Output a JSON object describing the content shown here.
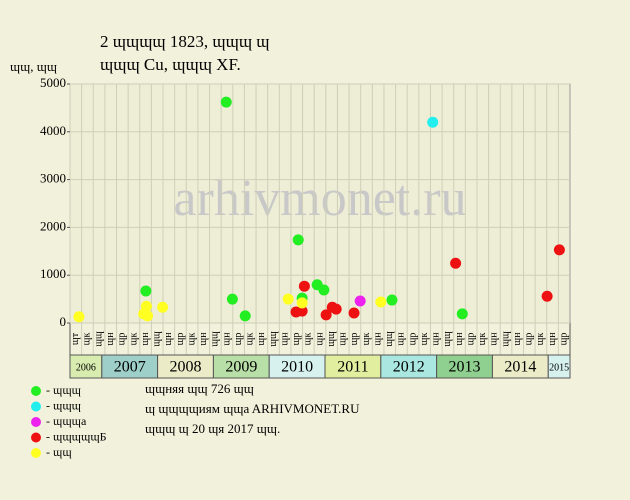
{
  "chart_data": {
    "type": "scatter",
    "title": "2 ɰɰɰɰ 1823, ɰɰɰ ɰ",
    "subtitle": "ɰɰɰ Cu, ɰɰɰ XF.",
    "y_label": "ɰɰ, ɰɰ",
    "watermark": "arhivmonet.ru",
    "ylim": [
      0,
      5000
    ],
    "yticks": [
      0,
      1000,
      2000,
      3000,
      4000,
      5000
    ],
    "xlim": [
      2006.43,
      2015.39
    ],
    "grid": true,
    "period_labels": [
      "ɰт",
      "ɰк",
      "ɰɰ",
      "ɰн",
      "ɰр",
      "ɰк",
      "ɰн",
      "ɰɰ",
      "ɰн",
      "ɰр",
      "ɰк",
      "ɰн",
      "ɰɰ",
      "ɰн",
      "ɰр",
      "ɰк",
      "ɰн",
      "ɰɰ",
      "ɰн",
      "ɰр",
      "ɰк",
      "ɰн",
      "ɰɰ",
      "ɰн",
      "ɰр",
      "ɰк",
      "ɰн",
      "ɰɰ",
      "ɰн",
      "ɰр",
      "ɰк",
      "ɰн",
      "ɰɰ",
      "ɰн",
      "ɰр",
      "ɰк",
      "ɰн",
      "ɰɰ",
      "ɰн",
      "ɰр",
      "ɰк",
      "ɰн",
      "ɰр"
    ],
    "years": [
      2006,
      2007,
      2008,
      2009,
      2010,
      2011,
      2012,
      2013,
      2014,
      2015
    ],
    "year_colors": [
      "#d8ecb0",
      "#9ecfc8",
      "#ecebc8",
      "#b9dfa8",
      "#d6f1ee",
      "#e1eea0",
      "#a9e7e0",
      "#8fcf90",
      "#ecebc8",
      "#d6f1ee"
    ],
    "series": [
      {
        "name": "- ɰɰɰ",
        "color": "#22ee22",
        "x": [
          2007.79,
          2009.23,
          2009.34,
          2009.57,
          2010.52,
          2010.59,
          2010.86,
          2010.98,
          2012.2,
          2013.46
        ],
        "values": [
          670,
          4620,
          500,
          150,
          1740,
          520,
          800,
          690,
          480,
          190
        ]
      },
      {
        "name": "- ɰɰɰ",
        "color": "#22eeee",
        "x": [
          2012.93
        ],
        "values": [
          4200
        ]
      },
      {
        "name": "- ɰɰɰa",
        "color": "#ee22ee",
        "x": [
          2011.63
        ],
        "values": [
          460
        ]
      },
      {
        "name": "- ɰɰɰɰɰБ",
        "color": "#ee1111",
        "x": [
          2010.48,
          2010.59,
          2010.63,
          2011.02,
          2011.13,
          2011.2,
          2011.52,
          2013.34,
          2014.98,
          2015.2
        ],
        "values": [
          230,
          250,
          770,
          170,
          330,
          290,
          210,
          1250,
          560,
          1530
        ]
      },
      {
        "name": "- ɰɰ",
        "color": "#ffff22",
        "x": [
          2006.59,
          2007.75,
          2007.8,
          2007.82,
          2008.09,
          2010.34,
          2010.59,
          2012.0
        ],
        "values": [
          130,
          190,
          350,
          150,
          330,
          500,
          420,
          440
        ]
      }
    ],
    "footer": [
      "ɰɰняя ɰɰ 726 ɰɰ",
      "ɰ ɰɰɰɰиям ɰɰa ARHIVMONET.RU",
      "ɰɰɰ ɰ 20 ɰя 2017 ɰɰ."
    ]
  }
}
